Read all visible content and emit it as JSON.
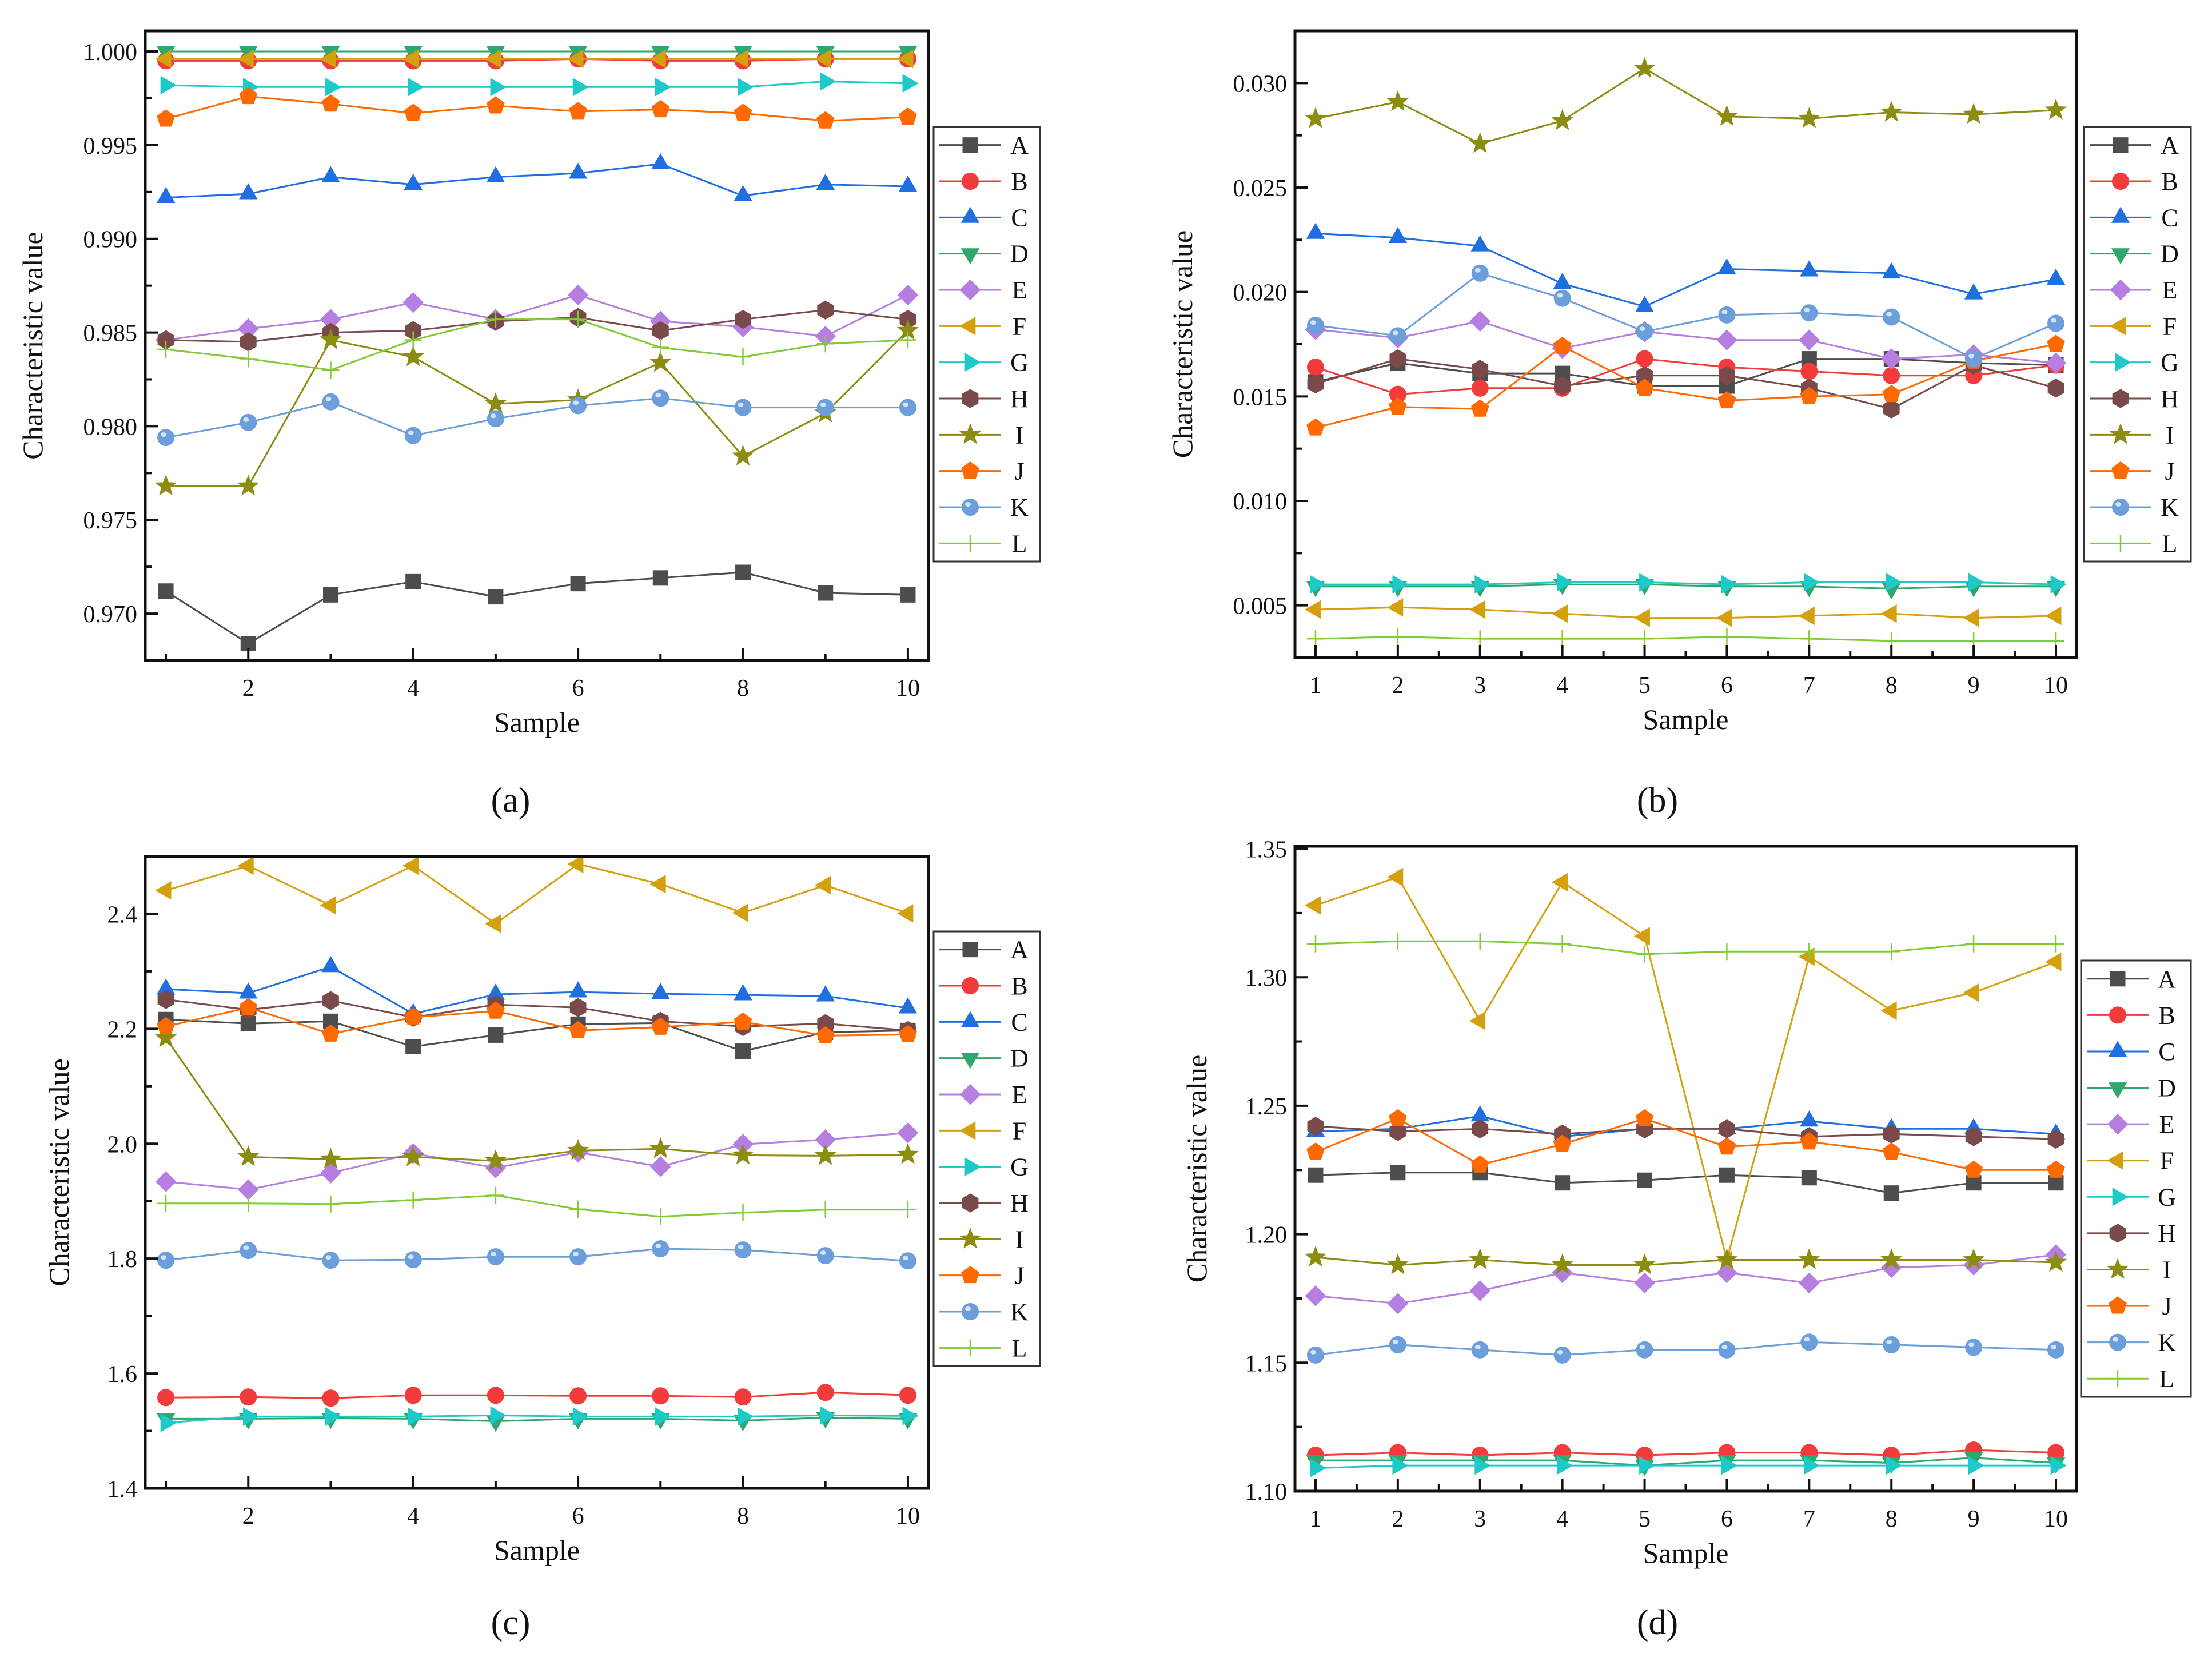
{
  "series_colors": {
    "A": "#4d4d4d",
    "B": "#f23c3c",
    "C": "#1f6fe0",
    "D": "#2ea86b",
    "E": "#b57ee0",
    "F": "#d4a00e",
    "G": "#1ec9c9",
    "H": "#7a4a4a",
    "I": "#8c8c10",
    "J": "#ff6a00",
    "K": "#6b9edb",
    "L": "#80cc33"
  },
  "series_markers": {
    "A": "square",
    "B": "circle",
    "C": "triangle-up",
    "D": "triangle-down",
    "E": "diamond",
    "F": "triangle-left",
    "G": "triangle-right",
    "H": "hexagon",
    "I": "star",
    "J": "pentagon",
    "K": "sphere",
    "L": "plus"
  },
  "chart_data": [
    {
      "type": "line",
      "caption": "(a)",
      "caption_letter": "a",
      "xlabel": "Sample",
      "ylabel": "Characteristic value",
      "x": [
        1,
        2,
        3,
        4,
        5,
        6,
        7,
        8,
        9,
        10
      ],
      "xlim": [
        0.75,
        10.25
      ],
      "ylim": [
        0.9675,
        1.0011
      ],
      "xticks": [
        {
          "v": 2,
          "label": "2"
        },
        {
          "v": 4,
          "label": "4"
        },
        {
          "v": 6,
          "label": "6"
        },
        {
          "v": 8,
          "label": "8"
        },
        {
          "v": 10,
          "label": "10"
        }
      ],
      "xminor": [
        1,
        3,
        5,
        7,
        9
      ],
      "yticks": [
        {
          "v": 0.97,
          "label": "0.970"
        },
        {
          "v": 0.975,
          "label": "0.975"
        },
        {
          "v": 0.98,
          "label": "0.980"
        },
        {
          "v": 0.985,
          "label": "0.985"
        },
        {
          "v": 0.99,
          "label": "0.990"
        },
        {
          "v": 0.995,
          "label": "0.995"
        },
        {
          "v": 1.0,
          "label": "1.000"
        }
      ],
      "yminor": [
        0.9725,
        0.9775,
        0.9825,
        0.9875,
        0.9925,
        0.9975
      ],
      "legend": "right",
      "series": [
        {
          "name": "A",
          "values": [
            0.9712,
            0.9684,
            0.971,
            0.9717,
            0.9709,
            0.9716,
            0.9719,
            0.9722,
            0.9711,
            0.971
          ]
        },
        {
          "name": "B",
          "values": [
            0.9995,
            0.9995,
            0.9995,
            0.9995,
            0.9995,
            0.9996,
            0.9995,
            0.9995,
            0.9996,
            0.9996
          ]
        },
        {
          "name": "C",
          "values": [
            0.9922,
            0.9924,
            0.9933,
            0.9929,
            0.9933,
            0.9935,
            0.994,
            0.9923,
            0.9929,
            0.9928
          ]
        },
        {
          "name": "D",
          "values": [
            1.0,
            1.0,
            1.0,
            1.0,
            1.0,
            1.0,
            1.0,
            1.0,
            1.0,
            1.0
          ]
        },
        {
          "name": "E",
          "values": [
            0.9846,
            0.9852,
            0.9857,
            0.9866,
            0.9857,
            0.987,
            0.9856,
            0.9853,
            0.9848,
            0.987
          ]
        },
        {
          "name": "F",
          "values": [
            0.9996,
            0.9996,
            0.9996,
            0.9996,
            0.9996,
            0.9996,
            0.9996,
            0.9996,
            0.9996,
            0.9996
          ]
        },
        {
          "name": "G",
          "values": [
            0.9982,
            0.9981,
            0.9981,
            0.9981,
            0.9981,
            0.9981,
            0.9981,
            0.9981,
            0.9984,
            0.9983
          ]
        },
        {
          "name": "H",
          "values": [
            0.9846,
            0.9845,
            0.985,
            0.9851,
            0.9856,
            0.9858,
            0.9851,
            0.9857,
            0.9862,
            0.9857
          ]
        },
        {
          "name": "I",
          "values": [
            0.9768,
            0.9768,
            0.9846,
            0.9837,
            0.9812,
            0.9814,
            0.9834,
            0.9784,
            0.9807,
            0.9851
          ]
        },
        {
          "name": "J",
          "values": [
            0.9964,
            0.9976,
            0.9972,
            0.9967,
            0.9971,
            0.9968,
            0.9969,
            0.9967,
            0.9963,
            0.9965
          ]
        },
        {
          "name": "K",
          "values": [
            0.9794,
            0.9802,
            0.9813,
            0.9795,
            0.9804,
            0.9811,
            0.9815,
            0.981,
            0.981,
            0.981
          ]
        },
        {
          "name": "L",
          "values": [
            0.9841,
            0.9836,
            0.983,
            0.9846,
            0.9857,
            0.9857,
            0.9842,
            0.9837,
            0.9844,
            0.9846
          ]
        }
      ]
    },
    {
      "type": "line",
      "caption": "(b)",
      "caption_letter": "b",
      "xlabel": "Sample",
      "ylabel": "Characteristic value",
      "x": [
        1,
        2,
        3,
        4,
        5,
        6,
        7,
        8,
        9,
        10
      ],
      "xlim": [
        0.75,
        10.25
      ],
      "ylim": [
        0.0025,
        0.0325
      ],
      "xticks": [
        {
          "v": 1,
          "label": "1"
        },
        {
          "v": 2,
          "label": "2"
        },
        {
          "v": 3,
          "label": "3"
        },
        {
          "v": 4,
          "label": "4"
        },
        {
          "v": 5,
          "label": "5"
        },
        {
          "v": 6,
          "label": "6"
        },
        {
          "v": 7,
          "label": "7"
        },
        {
          "v": 8,
          "label": "8"
        },
        {
          "v": 9,
          "label": "9"
        },
        {
          "v": 10,
          "label": "10"
        }
      ],
      "xminor": [
        1.5,
        2.5,
        3.5,
        4.5,
        5.5,
        6.5,
        7.5,
        8.5,
        9.5
      ],
      "yticks": [
        {
          "v": 0.005,
          "label": "0.005"
        },
        {
          "v": 0.01,
          "label": "0.010"
        },
        {
          "v": 0.015,
          "label": "0.015"
        },
        {
          "v": 0.02,
          "label": "0.020"
        },
        {
          "v": 0.025,
          "label": "0.025"
        },
        {
          "v": 0.03,
          "label": "0.030"
        }
      ],
      "yminor": [
        0.0075,
        0.0125,
        0.0175,
        0.0225,
        0.0275
      ],
      "legend": "right",
      "series": [
        {
          "name": "A",
          "values": [
            0.0157,
            0.0166,
            0.0161,
            0.0161,
            0.0155,
            0.0155,
            0.0168,
            0.0168,
            0.0166,
            0.0165
          ]
        },
        {
          "name": "B",
          "values": [
            0.0164,
            0.0151,
            0.0154,
            0.0154,
            0.0168,
            0.0164,
            0.0162,
            0.016,
            0.016,
            0.0165
          ]
        },
        {
          "name": "C",
          "values": [
            0.0228,
            0.0226,
            0.0222,
            0.0204,
            0.0193,
            0.0211,
            0.021,
            0.0209,
            0.0199,
            0.0206
          ]
        },
        {
          "name": "D",
          "values": [
            0.0059,
            0.0059,
            0.0059,
            0.006,
            0.006,
            0.0059,
            0.0059,
            0.0058,
            0.0059,
            0.0059
          ]
        },
        {
          "name": "E",
          "values": [
            0.0182,
            0.0178,
            0.0186,
            0.0173,
            0.0181,
            0.0177,
            0.0177,
            0.0168,
            0.017,
            0.0166
          ]
        },
        {
          "name": "F",
          "values": [
            0.0048,
            0.0049,
            0.0048,
            0.0046,
            0.0044,
            0.0044,
            0.0045,
            0.0046,
            0.0044,
            0.0045
          ]
        },
        {
          "name": "G",
          "values": [
            0.006,
            0.006,
            0.006,
            0.0061,
            0.0061,
            0.006,
            0.0061,
            0.0061,
            0.0061,
            0.006
          ]
        },
        {
          "name": "H",
          "values": [
            0.0156,
            0.0168,
            0.0163,
            0.0155,
            0.016,
            0.016,
            0.0154,
            0.0144,
            0.0165,
            0.0154
          ]
        },
        {
          "name": "I",
          "values": [
            0.0283,
            0.0291,
            0.0271,
            0.0282,
            0.0307,
            0.0284,
            0.0283,
            0.0286,
            0.0285,
            0.0287
          ]
        },
        {
          "name": "J",
          "values": [
            0.0135,
            0.0145,
            0.0144,
            0.0174,
            0.0154,
            0.0148,
            0.015,
            0.0151,
            0.0167,
            0.0175
          ]
        },
        {
          "name": "K",
          "values": [
            0.0184,
            0.0179,
            0.0209,
            0.0197,
            0.0181,
            0.0189,
            0.019,
            0.0188,
            0.0168,
            0.0185
          ]
        },
        {
          "name": "L",
          "values": [
            0.0034,
            0.0035,
            0.0034,
            0.0034,
            0.0034,
            0.0035,
            0.0034,
            0.0033,
            0.0033,
            0.0033
          ]
        }
      ]
    },
    {
      "type": "line",
      "caption": "(c)",
      "caption_letter": "c",
      "xlabel": "Sample",
      "ylabel": "Characteristic value",
      "x": [
        1,
        2,
        3,
        4,
        5,
        6,
        7,
        8,
        9,
        10
      ],
      "xlim": [
        0.75,
        10.25
      ],
      "ylim": [
        1.4,
        2.5
      ],
      "xticks": [
        {
          "v": 2,
          "label": "2"
        },
        {
          "v": 4,
          "label": "4"
        },
        {
          "v": 6,
          "label": "6"
        },
        {
          "v": 8,
          "label": "8"
        },
        {
          "v": 10,
          "label": "10"
        }
      ],
      "xminor": [
        1,
        3,
        5,
        7,
        9
      ],
      "yticks": [
        {
          "v": 1.4,
          "label": "1.4"
        },
        {
          "v": 1.6,
          "label": "1.6"
        },
        {
          "v": 1.8,
          "label": "1.8"
        },
        {
          "v": 2.0,
          "label": "2.0"
        },
        {
          "v": 2.2,
          "label": "2.2"
        },
        {
          "v": 2.4,
          "label": "2.4"
        }
      ],
      "yminor": [
        1.5,
        1.7,
        1.9,
        2.1,
        2.3
      ],
      "legend": "right",
      "series": [
        {
          "name": "A",
          "values": [
            2.216,
            2.209,
            2.213,
            2.169,
            2.189,
            2.208,
            2.21,
            2.161,
            2.194,
            2.197
          ]
        },
        {
          "name": "B",
          "values": [
            1.558,
            1.559,
            1.557,
            1.562,
            1.562,
            1.561,
            1.561,
            1.559,
            1.567,
            1.562
          ]
        },
        {
          "name": "C",
          "values": [
            2.269,
            2.262,
            2.308,
            2.226,
            2.26,
            2.264,
            2.261,
            2.259,
            2.257,
            2.236
          ]
        },
        {
          "name": "D",
          "values": [
            1.521,
            1.521,
            1.522,
            1.521,
            1.517,
            1.521,
            1.521,
            1.518,
            1.523,
            1.521
          ]
        },
        {
          "name": "E",
          "values": [
            1.934,
            1.92,
            1.949,
            1.983,
            1.958,
            1.985,
            1.96,
            1.999,
            2.007,
            2.019
          ]
        },
        {
          "name": "F",
          "values": [
            2.441,
            2.484,
            2.415,
            2.484,
            2.383,
            2.487,
            2.452,
            2.402,
            2.45,
            2.401
          ]
        },
        {
          "name": "G",
          "values": [
            1.514,
            1.525,
            1.525,
            1.525,
            1.527,
            1.525,
            1.525,
            1.525,
            1.527,
            1.526
          ]
        },
        {
          "name": "H",
          "values": [
            2.251,
            2.233,
            2.249,
            2.22,
            2.242,
            2.237,
            2.213,
            2.204,
            2.209,
            2.197
          ]
        },
        {
          "name": "I",
          "values": [
            2.184,
            1.977,
            1.973,
            1.977,
            1.97,
            1.988,
            1.991,
            1.98,
            1.979,
            1.981
          ]
        },
        {
          "name": "J",
          "values": [
            2.204,
            2.237,
            2.191,
            2.22,
            2.231,
            2.197,
            2.203,
            2.212,
            2.188,
            2.19
          ]
        },
        {
          "name": "K",
          "values": [
            1.797,
            1.814,
            1.797,
            1.798,
            1.803,
            1.803,
            1.817,
            1.815,
            1.805,
            1.796
          ]
        },
        {
          "name": "L",
          "values": [
            1.896,
            1.896,
            1.895,
            1.902,
            1.91,
            1.886,
            1.873,
            1.88,
            1.885,
            1.885
          ]
        }
      ]
    },
    {
      "type": "line",
      "caption": "(d)",
      "caption_letter": "d",
      "xlabel": "Sample",
      "ylabel": "Characteristic value",
      "x": [
        1,
        2,
        3,
        4,
        5,
        6,
        7,
        8,
        9,
        10
      ],
      "xlim": [
        0.75,
        10.25
      ],
      "ylim": [
        1.1,
        1.351
      ],
      "xticks": [
        {
          "v": 1,
          "label": "1"
        },
        {
          "v": 2,
          "label": "2"
        },
        {
          "v": 3,
          "label": "3"
        },
        {
          "v": 4,
          "label": "4"
        },
        {
          "v": 5,
          "label": "5"
        },
        {
          "v": 6,
          "label": "6"
        },
        {
          "v": 7,
          "label": "7"
        },
        {
          "v": 8,
          "label": "8"
        },
        {
          "v": 9,
          "label": "9"
        },
        {
          "v": 10,
          "label": "10"
        }
      ],
      "xminor": [
        1.5,
        2.5,
        3.5,
        4.5,
        5.5,
        6.5,
        7.5,
        8.5,
        9.5
      ],
      "yticks": [
        {
          "v": 1.1,
          "label": "1.10"
        },
        {
          "v": 1.15,
          "label": "1.15"
        },
        {
          "v": 1.2,
          "label": "1.20"
        },
        {
          "v": 1.25,
          "label": "1.25"
        },
        {
          "v": 1.3,
          "label": "1.30"
        },
        {
          "v": 1.35,
          "label": "1.35"
        }
      ],
      "yminor": [
        1.125,
        1.175,
        1.225,
        1.275,
        1.325
      ],
      "legend": "right",
      "series": [
        {
          "name": "A",
          "values": [
            1.223,
            1.224,
            1.224,
            1.22,
            1.221,
            1.223,
            1.222,
            1.216,
            1.22,
            1.22
          ]
        },
        {
          "name": "B",
          "values": [
            1.114,
            1.115,
            1.114,
            1.115,
            1.114,
            1.115,
            1.115,
            1.114,
            1.116,
            1.115
          ]
        },
        {
          "name": "C",
          "values": [
            1.24,
            1.241,
            1.246,
            1.238,
            1.241,
            1.241,
            1.244,
            1.241,
            1.241,
            1.239
          ]
        },
        {
          "name": "D",
          "values": [
            1.112,
            1.112,
            1.112,
            1.112,
            1.11,
            1.112,
            1.112,
            1.111,
            1.113,
            1.111
          ]
        },
        {
          "name": "E",
          "values": [
            1.176,
            1.173,
            1.178,
            1.185,
            1.181,
            1.185,
            1.181,
            1.187,
            1.188,
            1.192
          ]
        },
        {
          "name": "F",
          "values": [
            1.328,
            1.339,
            1.283,
            1.337,
            1.316,
            1.19,
            1.308,
            1.287,
            1.294,
            1.306
          ]
        },
        {
          "name": "G",
          "values": [
            1.109,
            1.11,
            1.11,
            1.11,
            1.11,
            1.11,
            1.11,
            1.11,
            1.11,
            1.11
          ]
        },
        {
          "name": "H",
          "values": [
            1.242,
            1.24,
            1.241,
            1.239,
            1.241,
            1.241,
            1.238,
            1.239,
            1.238,
            1.237
          ]
        },
        {
          "name": "I",
          "values": [
            1.191,
            1.188,
            1.19,
            1.188,
            1.188,
            1.19,
            1.19,
            1.19,
            1.19,
            1.189
          ]
        },
        {
          "name": "J",
          "values": [
            1.232,
            1.245,
            1.227,
            1.235,
            1.245,
            1.234,
            1.236,
            1.232,
            1.225,
            1.225
          ]
        },
        {
          "name": "K",
          "values": [
            1.153,
            1.157,
            1.155,
            1.153,
            1.155,
            1.155,
            1.158,
            1.157,
            1.156,
            1.155
          ]
        },
        {
          "name": "L",
          "values": [
            1.313,
            1.314,
            1.314,
            1.313,
            1.309,
            1.31,
            1.31,
            1.31,
            1.313,
            1.313
          ]
        }
      ]
    }
  ]
}
